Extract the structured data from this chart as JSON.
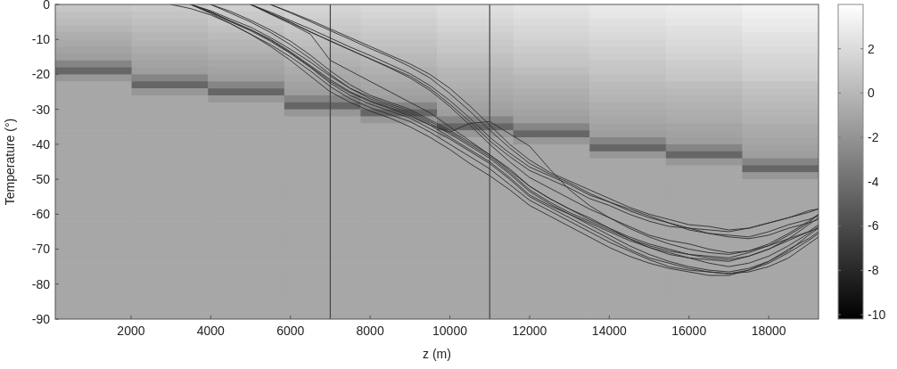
{
  "chart_data": {
    "type": "heatmap",
    "xlabel": "z (m)",
    "ylabel": "Temperature (°)",
    "xlim": [
      100,
      19250
    ],
    "ylim": [
      -90,
      0
    ],
    "xticks": [
      2000,
      4000,
      6000,
      8000,
      10000,
      12000,
      14000,
      16000,
      18000
    ],
    "yticks": [
      0,
      -10,
      -20,
      -30,
      -40,
      -50,
      -60,
      -70,
      -80,
      -90
    ],
    "clim": [
      -10.2,
      4
    ],
    "cticks": [
      2,
      0,
      -2,
      -4,
      -6,
      -8,
      -10
    ],
    "cells": [
      [
        0.8,
        1.0,
        1.3,
        1.6,
        1.9,
        2.2,
        2.5,
        2.8,
        3.0,
        3.3
      ],
      [
        0.5,
        0.7,
        1.0,
        1.4,
        1.6,
        2.0,
        2.3,
        2.6,
        2.8,
        3.1
      ],
      [
        0.2,
        0.5,
        0.8,
        1.1,
        1.4,
        1.7,
        2.0,
        2.3,
        2.6,
        2.9
      ],
      [
        -0.1,
        0.2,
        0.5,
        0.9,
        1.1,
        1.5,
        1.8,
        2.1,
        2.3,
        2.7
      ],
      [
        -0.5,
        -0.1,
        0.2,
        0.6,
        0.9,
        1.2,
        1.6,
        1.9,
        2.1,
        2.4
      ],
      [
        -0.8,
        -0.3,
        -0.1,
        0.4,
        0.6,
        1.0,
        1.4,
        1.6,
        1.9,
        2.2
      ],
      [
        -1.1,
        -0.6,
        -0.3,
        0.1,
        0.4,
        0.8,
        1.1,
        1.4,
        1.7,
        2.0
      ],
      [
        -1.4,
        -0.9,
        -0.6,
        -0.2,
        0.1,
        0.5,
        0.9,
        1.2,
        1.5,
        1.8
      ],
      [
        -2.8,
        -1.1,
        -0.9,
        -0.4,
        -0.1,
        0.3,
        0.7,
        0.9,
        1.2,
        1.6
      ],
      [
        -4.5,
        -1.4,
        -1.1,
        -0.7,
        -0.4,
        0.0,
        0.4,
        0.7,
        1.0,
        1.4
      ],
      [
        -1.8,
        -2.8,
        -1.4,
        -0.9,
        -0.6,
        -0.2,
        0.0,
        0.5,
        0.8,
        1.2
      ],
      [
        -0.9,
        -4.5,
        -2.8,
        -1.2,
        -0.9,
        -0.4,
        -0.2,
        0.2,
        0.4,
        0.7
      ],
      [
        -0.9,
        -1.8,
        -4.5,
        -1.4,
        -1.1,
        -0.7,
        -0.5,
        0.0,
        0.1,
        0.5
      ],
      [
        -0.9,
        -0.9,
        -1.8,
        -2.8,
        -1.4,
        -0.9,
        -0.7,
        -0.2,
        -0.1,
        0.3
      ],
      [
        -0.9,
        -0.9,
        -0.9,
        -4.5,
        -2.8,
        -1.2,
        -0.9,
        -0.5,
        -0.3,
        0.1
      ],
      [
        -0.9,
        -0.9,
        -0.9,
        -1.8,
        -4.5,
        -1.4,
        -1.2,
        -0.7,
        -0.5,
        -0.1
      ],
      [
        -0.9,
        -0.9,
        -0.9,
        -0.9,
        -1.8,
        -2.8,
        -1.4,
        -0.9,
        -0.7,
        -0.3
      ],
      [
        -0.9,
        -0.9,
        -0.9,
        -0.9,
        -0.9,
        -4.5,
        -2.8,
        -1.2,
        -1.0,
        -0.6
      ],
      [
        -0.9,
        -0.9,
        -0.9,
        -0.9,
        -0.9,
        -1.8,
        -4.5,
        -1.4,
        -1.2,
        -0.8
      ],
      [
        -0.9,
        -0.9,
        -0.9,
        -0.9,
        -0.9,
        -0.9,
        -1.8,
        -2.8,
        -1.4,
        -1.0
      ],
      [
        -0.9,
        -0.9,
        -0.9,
        -0.9,
        -0.9,
        -0.9,
        -0.9,
        -4.5,
        -2.8,
        -1.2
      ],
      [
        -0.9,
        -0.9,
        -0.9,
        -0.9,
        -0.9,
        -0.9,
        -0.9,
        -1.8,
        -4.5,
        -1.4
      ],
      [
        -0.9,
        -0.9,
        -0.9,
        -0.9,
        -0.9,
        -0.9,
        -0.9,
        -0.9,
        -1.8,
        -2.8
      ],
      [
        -0.9,
        -0.9,
        -0.9,
        -0.9,
        -0.9,
        -0.9,
        -0.9,
        -0.9,
        -0.9,
        -4.5
      ],
      [
        -0.9,
        -0.9,
        -0.9,
        -0.9,
        -0.9,
        -0.9,
        -0.9,
        -0.9,
        -0.9,
        -1.8
      ],
      [
        -0.9,
        -0.9,
        -0.9,
        -0.9,
        -0.9,
        -0.9,
        -0.9,
        -0.9,
        -0.9,
        -0.9
      ],
      [
        -0.9,
        -0.9,
        -0.9,
        -0.9,
        -0.9,
        -0.9,
        -0.9,
        -0.9,
        -0.9,
        -0.9
      ],
      [
        -0.9,
        -0.9,
        -0.9,
        -0.9,
        -0.9,
        -0.9,
        -0.9,
        -0.9,
        -0.9,
        -0.9
      ],
      [
        -0.9,
        -0.9,
        -0.9,
        -0.9,
        -0.9,
        -0.9,
        -0.9,
        -0.9,
        -0.9,
        -0.9
      ],
      [
        -0.9,
        -0.9,
        -0.9,
        -0.9,
        -0.9,
        -0.9,
        -0.9,
        -0.9,
        -0.9,
        -0.9
      ],
      [
        -0.9,
        -0.9,
        -0.9,
        -0.9,
        -0.9,
        -0.9,
        -0.9,
        -0.9,
        -0.9,
        -0.9
      ],
      [
        -0.9,
        -0.9,
        -0.9,
        -0.9,
        -0.9,
        -0.9,
        -0.9,
        -0.9,
        -0.9,
        -0.9
      ],
      [
        -0.9,
        -0.9,
        -0.9,
        -0.9,
        -0.9,
        -0.9,
        -0.9,
        -0.9,
        -0.9,
        -0.9
      ],
      [
        -0.9,
        -0.9,
        -0.9,
        -0.9,
        -0.9,
        -0.9,
        -0.9,
        -0.9,
        -0.9,
        -0.9
      ],
      [
        -0.9,
        -0.9,
        -0.9,
        -0.9,
        -0.9,
        -0.9,
        -0.9,
        -0.9,
        -0.9,
        -0.9
      ],
      [
        -0.9,
        -0.9,
        -0.9,
        -0.9,
        -0.9,
        -0.9,
        -0.9,
        -0.9,
        -0.9,
        -0.9
      ],
      [
        -0.9,
        -0.9,
        -0.9,
        -0.9,
        -0.9,
        -0.9,
        -0.9,
        -0.9,
        -0.9,
        -0.9
      ],
      [
        -0.9,
        -0.9,
        -0.9,
        -0.9,
        -0.9,
        -0.9,
        -0.9,
        -0.9,
        -0.9,
        -0.9
      ],
      [
        -0.9,
        -0.9,
        -0.9,
        -0.9,
        -0.9,
        -0.9,
        -0.9,
        -0.9,
        -0.9,
        -0.9
      ],
      [
        -0.9,
        -0.9,
        -0.9,
        -0.9,
        -0.9,
        -0.9,
        -0.9,
        -0.9,
        -0.9,
        -0.9
      ],
      [
        -0.9,
        -0.9,
        -0.9,
        -0.9,
        -0.9,
        -0.9,
        -0.9,
        -0.9,
        -0.9,
        -0.9
      ],
      [
        -0.9,
        -0.9,
        -0.9,
        -0.9,
        -0.9,
        -0.9,
        -0.9,
        -0.9,
        -0.9,
        -0.9
      ],
      [
        -0.9,
        -0.9,
        -0.9,
        -0.9,
        -0.9,
        -0.9,
        -0.9,
        -0.9,
        -0.9,
        -0.9
      ],
      [
        -0.9,
        -0.9,
        -0.9,
        -0.9,
        -0.9,
        -0.9,
        -0.9,
        -0.9,
        -0.9,
        -0.9
      ],
      [
        -0.9,
        -0.9,
        -0.9,
        -0.9,
        -0.9,
        -0.9,
        -0.9,
        -0.9,
        -0.9,
        -0.9
      ]
    ],
    "x": [
      3000,
      3500,
      4000,
      4500,
      5000,
      5500,
      6000,
      6500,
      7000,
      7500,
      8000,
      8500,
      9000,
      9500,
      10000,
      10500,
      11000,
      11500,
      12000,
      12500,
      13000,
      13500,
      14000,
      14500,
      15000,
      15500,
      16000,
      16500,
      17000,
      17500,
      18000,
      18500,
      19000,
      19250
    ],
    "series": [
      {
        "type": "line",
        "color": "#2e2e2e",
        "values": [
          null,
          null,
          null,
          null,
          0,
          -2.5,
          -5,
          -7.8,
          -10.5,
          -13,
          -15.5,
          -18,
          -20.5,
          -24,
          -28.5,
          -33.5,
          -39,
          -43.5,
          -47.5,
          -50,
          -52.5,
          -55.5,
          -57.5,
          -60,
          -62,
          -63.5,
          -64,
          -64.5,
          -65,
          -64,
          -62.5,
          -61,
          -59.5,
          -58.5
        ]
      },
      {
        "type": "line",
        "color": "#2e2e2e",
        "values": [
          null,
          null,
          null,
          null,
          0,
          -2.2,
          -4.6,
          -7,
          -9.6,
          -12.2,
          -14.6,
          -17.2,
          -19.8,
          -23.2,
          -27.5,
          -32.5,
          -38,
          -42.5,
          -46.5,
          -49,
          -51.5,
          -54.5,
          -56.5,
          -59,
          -61,
          -62.5,
          -64.5,
          -65.5,
          -66,
          -66.5,
          -65,
          -63,
          -61.5,
          -60.5
        ]
      },
      {
        "type": "line",
        "color": "#2e2e2e",
        "values": [
          null,
          null,
          null,
          null,
          null,
          0,
          -2.4,
          -4.9,
          -7.5,
          -10,
          -12.6,
          -15,
          -17.8,
          -21,
          -25.5,
          -30.5,
          -36,
          -41,
          -45.5,
          -48.5,
          -51,
          -54,
          -56.5,
          -58.5,
          -60.5,
          -62.5,
          -64,
          -65.5,
          -66.5,
          -67,
          -66,
          -64,
          -62.5,
          -61.5
        ]
      },
      {
        "type": "line",
        "color": "#2e2e2e",
        "values": [
          null,
          null,
          null,
          null,
          0,
          -2.6,
          -5.2,
          -7.9,
          -10.4,
          -13,
          -15.6,
          -18.2,
          -21,
          -24.6,
          -29.2,
          -34.5,
          -40,
          -45,
          -49.5,
          -52.5,
          -55.5,
          -58.5,
          -61,
          -63.5,
          -66,
          -67.5,
          -68.5,
          -70,
          -71,
          -70.5,
          -69,
          -67,
          -65,
          -64
        ]
      },
      {
        "type": "line",
        "color": "#2e2e2e",
        "values": [
          null,
          null,
          null,
          null,
          null,
          0,
          -2.2,
          -4.5,
          -7,
          -9.5,
          -12,
          -14.5,
          -17,
          -20,
          -24,
          -29,
          -34.5,
          -40,
          -44.5,
          -48,
          -50.5,
          -53,
          -55.5,
          -58,
          -60,
          -61.5,
          -63,
          -63.5,
          -64.5,
          -64,
          -62.5,
          -61,
          -59,
          -58.5
        ]
      },
      {
        "type": "line",
        "color": "#2e2e2e",
        "values": [
          null,
          null,
          null,
          null,
          0,
          -2.8,
          -5.5,
          -8.5,
          -16,
          -19,
          -22,
          -25,
          -28,
          -31,
          -35,
          -39,
          -43,
          -47.5,
          -52,
          -55.5,
          -58.5,
          -61,
          -64,
          -67,
          -69.5,
          -71.5,
          -72.5,
          -73,
          -73.5,
          -72,
          -70,
          -67.5,
          -65,
          -63
        ]
      },
      {
        "type": "line",
        "color": "#2e2e2e",
        "values": [
          null,
          0,
          -2.3,
          -5,
          -7.5,
          -10.5,
          -14,
          -18,
          -22.5,
          -26,
          -28.5,
          -30.5,
          -32.5,
          -35.5,
          -38.5,
          -42,
          -45.5,
          -50,
          -55,
          -58,
          -61,
          -64,
          -67,
          -70,
          -72.5,
          -74,
          -75.5,
          -76.5,
          -77,
          -76.5,
          -75,
          -72.5,
          -68.5,
          -66.5
        ]
      },
      {
        "type": "line",
        "color": "#2e2e2e",
        "values": [
          null,
          0,
          -1.8,
          -4.2,
          -6.5,
          -9.5,
          -12.8,
          -16.5,
          -20.5,
          -24,
          -26.5,
          -28.5,
          -30.5,
          -33.5,
          -36.5,
          -40,
          -43.5,
          -48,
          -53,
          -56.5,
          -59.5,
          -62,
          -64.5,
          -67,
          -69,
          -70.5,
          -71.5,
          -72.5,
          -73,
          -72,
          -70,
          -67,
          -63,
          -61
        ]
      },
      {
        "type": "line",
        "color": "#2e2e2e",
        "values": [
          null,
          null,
          0,
          -2.5,
          -5,
          -8,
          -11.5,
          -15.5,
          -20,
          -24,
          -27,
          -29,
          -31,
          -34,
          -37,
          -40.5,
          -44,
          -48.5,
          -53.5,
          -57,
          -60,
          -63,
          -66,
          -69,
          -71.5,
          -73.5,
          -75,
          -76,
          -76.5,
          -75.5,
          -73.5,
          -70.5,
          -66,
          -64
        ]
      },
      {
        "type": "line",
        "color": "#2e2e2e",
        "values": [
          null,
          0,
          -2.6,
          -5.5,
          -8.5,
          -12,
          -16,
          -20.5,
          -25,
          -28,
          -30.5,
          -32.5,
          -35,
          -38,
          -41.5,
          -45.5,
          -49,
          -53,
          -57.5,
          -60.5,
          -63.5,
          -66.5,
          -69.5,
          -72,
          -74,
          -75.5,
          -76.5,
          -77.5,
          -77.5,
          -76,
          -74,
          -71,
          -67.5,
          -65.5
        ]
      },
      {
        "type": "line",
        "color": "#2e2e2e",
        "values": [
          null,
          null,
          0,
          -2,
          -4.5,
          -7.3,
          -10.5,
          -14.5,
          -19,
          -23,
          -26,
          -28,
          -30,
          -33,
          -36,
          -39.5,
          -43,
          -47,
          -52,
          -55.5,
          -58.5,
          -61.5,
          -64,
          -66.5,
          -68.5,
          -70,
          -71.5,
          -72,
          -72.5,
          -71,
          -69,
          -66,
          -62.5,
          -60
        ]
      },
      {
        "type": "line",
        "color": "#2e2e2e",
        "values": [
          null,
          0,
          -2.2,
          -4.8,
          -7.2,
          -10,
          -13.5,
          -17.5,
          -21.5,
          -25,
          -27.5,
          -29.5,
          -31.5,
          -34.5,
          -38,
          -41.5,
          -45,
          -49.5,
          -54.5,
          -57.5,
          -60,
          -62.5,
          -65,
          -67.5,
          -69.5,
          -71,
          -72.5,
          -74,
          -75,
          -74,
          -72,
          -69,
          -65.5,
          -63.5
        ]
      },
      {
        "type": "line",
        "color": "#2e2e2e",
        "values": [
          0,
          -1.2,
          -3,
          -5.5,
          -8.5,
          -11.5,
          -15,
          -19,
          -23.5,
          -27,
          -29.5,
          -31.5,
          -33.5,
          -36.5,
          -40,
          -43.5,
          -47,
          -51.5,
          -56,
          -59,
          -62,
          -65,
          -68,
          -70.5,
          -73,
          -75,
          -76,
          -76.5,
          -77,
          -76,
          -73.5,
          -70,
          -67,
          -65
        ]
      },
      {
        "type": "line",
        "color": "#2e2e2e",
        "values": [
          null,
          0,
          -2.1,
          -4.7,
          -7.2,
          -10.2,
          -13.8,
          -17.8,
          -22,
          -25.3,
          -27.8,
          -29.8,
          -32,
          -34.5,
          -36.5,
          -34,
          -33.5,
          -37,
          -40.5,
          -47,
          -53,
          -57.5,
          -61,
          -64,
          -66.5,
          -68.5,
          -70,
          -71,
          -71.5,
          -70.5,
          -68.5,
          -65.5,
          -62,
          -60
        ]
      }
    ],
    "ref_lines": [
      {
        "axis": "x",
        "value": 7000,
        "color": "#444444"
      },
      {
        "axis": "x",
        "value": 11000,
        "color": "#444444"
      }
    ]
  }
}
